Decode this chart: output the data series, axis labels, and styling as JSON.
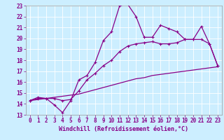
{
  "xlabel": "Windchill (Refroidissement éolien,°C)",
  "bg_color": "#cceeff",
  "grid_color": "#aadddd",
  "line_color": "#880088",
  "xlim": [
    -0.5,
    23.5
  ],
  "ylim": [
    13,
    23
  ],
  "xticks": [
    0,
    1,
    2,
    3,
    4,
    5,
    6,
    7,
    8,
    9,
    10,
    11,
    12,
    13,
    14,
    15,
    16,
    17,
    18,
    19,
    20,
    21,
    22,
    23
  ],
  "yticks": [
    13,
    14,
    15,
    16,
    17,
    18,
    19,
    20,
    21,
    22,
    23
  ],
  "line1_x": [
    0,
    1,
    2,
    3,
    4,
    5,
    6,
    7,
    8,
    9,
    10,
    11,
    12,
    13,
    14,
    15,
    16,
    17,
    18,
    19,
    20,
    21,
    22,
    23
  ],
  "line1_y": [
    14.3,
    14.6,
    14.5,
    13.9,
    13.2,
    14.3,
    16.2,
    16.6,
    17.8,
    19.8,
    20.6,
    23.0,
    23.1,
    22.0,
    20.1,
    20.1,
    21.2,
    20.9,
    20.6,
    19.9,
    19.9,
    21.1,
    19.5,
    17.5
  ],
  "line2_x": [
    0,
    1,
    2,
    3,
    4,
    5,
    6,
    7,
    8,
    9,
    10,
    11,
    12,
    13,
    14,
    15,
    16,
    17,
    18,
    19,
    20,
    21,
    22,
    23
  ],
  "line2_y": [
    14.3,
    14.5,
    14.5,
    14.5,
    14.3,
    14.4,
    15.2,
    16.2,
    16.8,
    17.5,
    18.0,
    18.8,
    19.3,
    19.5,
    19.6,
    19.7,
    19.5,
    19.5,
    19.6,
    19.9,
    19.9,
    19.9,
    19.5,
    17.5
  ],
  "line3_x": [
    0,
    1,
    2,
    3,
    4,
    5,
    6,
    7,
    8,
    9,
    10,
    11,
    12,
    13,
    14,
    15,
    16,
    17,
    18,
    19,
    20,
    21,
    22,
    23
  ],
  "line3_y": [
    14.3,
    14.4,
    14.5,
    14.6,
    14.7,
    14.8,
    14.9,
    15.1,
    15.3,
    15.5,
    15.7,
    15.9,
    16.1,
    16.3,
    16.4,
    16.6,
    16.7,
    16.8,
    16.9,
    17.0,
    17.1,
    17.2,
    17.3,
    17.4
  ],
  "tick_fontsize": 5.5,
  "xlabel_fontsize": 6.0
}
